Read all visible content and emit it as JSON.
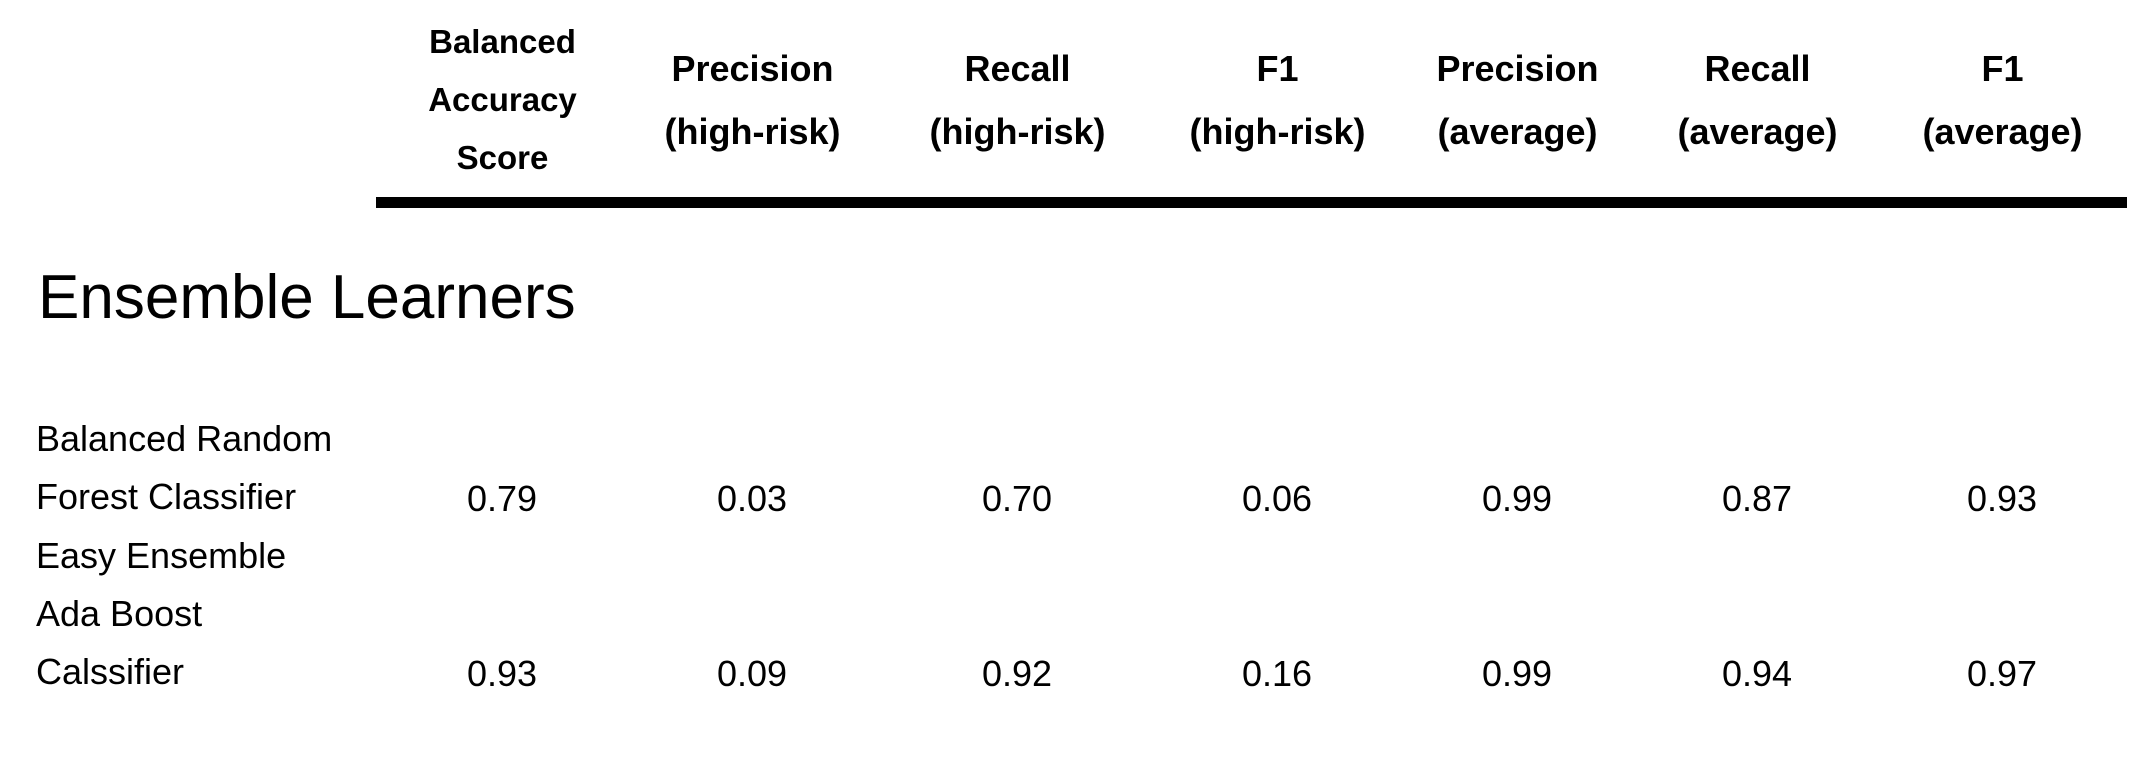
{
  "columns": [
    {
      "lines": [
        "Balanced",
        "Accuracy",
        "Score"
      ]
    },
    {
      "lines": [
        "Precision",
        "(high-risk)"
      ]
    },
    {
      "lines": [
        "Recall",
        "(high-risk)"
      ]
    },
    {
      "lines": [
        "F1",
        "(high-risk)"
      ]
    },
    {
      "lines": [
        "Precision",
        "(average)"
      ]
    },
    {
      "lines": [
        "Recall",
        "(average)"
      ]
    },
    {
      "lines": [
        "F1",
        "(average)"
      ]
    }
  ],
  "section_title": "Ensemble Learners",
  "rows": [
    {
      "label_lines": [
        "Balanced Random",
        "Forest Classifier"
      ],
      "values": [
        "0.79",
        "0.03",
        "0.70",
        "0.06",
        "0.99",
        "0.87",
        "0.93"
      ]
    },
    {
      "label_lines": [
        "Easy Ensemble",
        "Ada Boost",
        "Calssifier"
      ],
      "values": [
        "0.93",
        "0.09",
        "0.92",
        "0.16",
        "0.99",
        "0.94",
        "0.97"
      ]
    }
  ]
}
